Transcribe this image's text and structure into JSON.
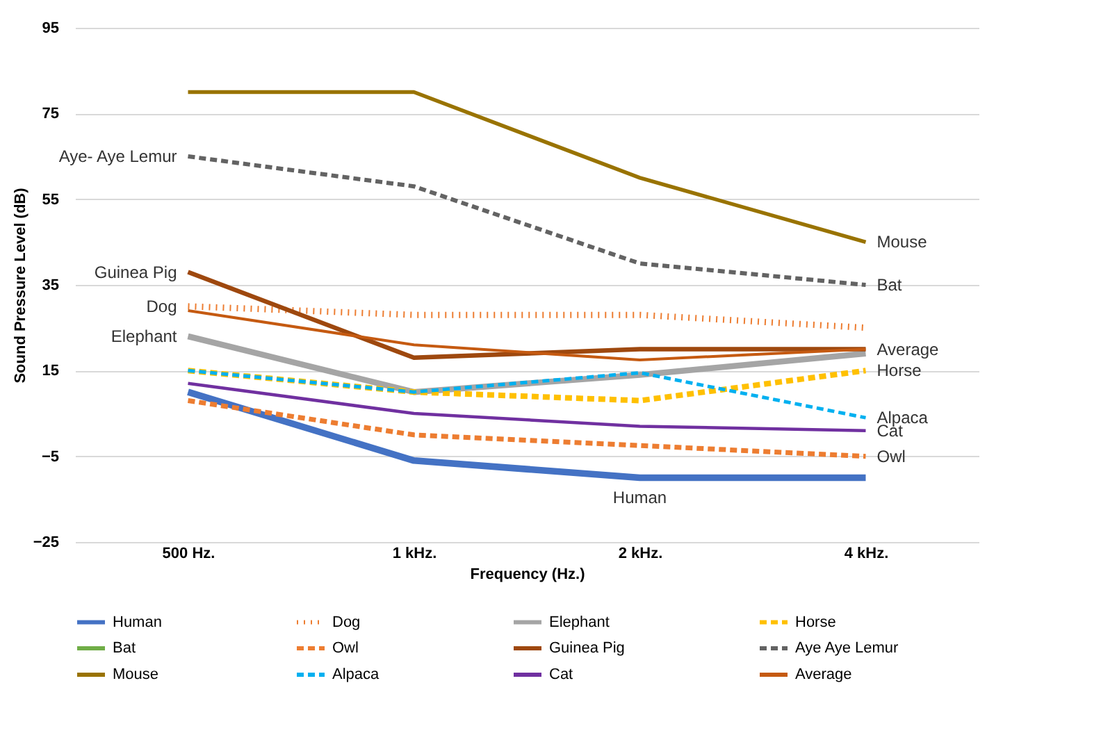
{
  "chart_data": {
    "type": "line",
    "xlabel": "Frequency (Hz.)",
    "ylabel": "Sound Pressure Level (dB)",
    "categories": [
      "500 Hz.",
      "1 kHz.",
      "2 kHz.",
      "4 kHz."
    ],
    "series": [
      {
        "name": "Human",
        "color": "#4472c4",
        "values": [
          10,
          -6,
          -10,
          -10
        ]
      },
      {
        "name": "Dog",
        "color": "#ed7d31",
        "line_style": "dotted",
        "values": [
          30,
          28,
          28,
          25
        ]
      },
      {
        "name": "Elephant",
        "color": "#a5a5a5",
        "values": [
          23,
          10,
          14,
          19
        ]
      },
      {
        "name": "Horse",
        "color": "#ffc000",
        "line_style": "dashed",
        "values": [
          15,
          10,
          8,
          15
        ]
      },
      {
        "name": "Bat",
        "color": "#70ad47",
        "values": [
          null,
          null,
          null,
          null
        ]
      },
      {
        "name": "Owl",
        "color": "#ed7d31",
        "line_style": "dashed",
        "values": [
          8,
          0,
          -2.5,
          -5
        ]
      },
      {
        "name": "Guinea Pig",
        "color": "#9e480e",
        "values": [
          38,
          18,
          20,
          20
        ]
      },
      {
        "name": "Aye Aye Lemur",
        "color": "#636363",
        "line_style": "dashed",
        "values": [
          65,
          58,
          40,
          35
        ]
      },
      {
        "name": "Mouse",
        "color": "#997300",
        "values": [
          80,
          80,
          60,
          45
        ]
      },
      {
        "name": "Alpaca",
        "color": "#00b0f0",
        "line_style": "dashed",
        "values": [
          15,
          10,
          14.5,
          4
        ]
      },
      {
        "name": "Cat",
        "color": "#7030a0",
        "values": [
          12,
          5,
          2,
          1
        ]
      },
      {
        "name": "Average",
        "color": "#c55a11",
        "values": [
          29,
          21,
          17.5,
          20
        ]
      }
    ],
    "ylim": [
      -25,
      95
    ],
    "yticks": [
      -25,
      -5,
      15,
      35,
      55,
      75,
      95
    ],
    "grid": "y",
    "legend": "bottom",
    "annotations": [
      {
        "text": "Aye- Aye Lemur",
        "x": "500 Hz.",
        "y": 65
      },
      {
        "text": "Guinea Pig",
        "x": "500 Hz.",
        "y": 38
      },
      {
        "text": "Dog",
        "x": "500 Hz.",
        "y": 30
      },
      {
        "text": "Elephant",
        "x": "500 Hz.",
        "y": 23
      },
      {
        "text": "Mouse",
        "x": "4 kHz.",
        "y": 45
      },
      {
        "text": "Bat",
        "x": "4 kHz.",
        "y": 35
      },
      {
        "text": "Average",
        "x": "4 kHz.",
        "y": 20
      },
      {
        "text": "Horse",
        "x": "4 kHz.",
        "y": 15
      },
      {
        "text": "Alpaca",
        "x": "4 kHz.",
        "y": 4
      },
      {
        "text": "Cat",
        "x": "4 kHz.",
        "y": 1
      },
      {
        "text": "Owl",
        "x": "4 kHz.",
        "y": -5
      },
      {
        "text": "Human",
        "x": "2 kHz.",
        "y": -10
      }
    ]
  }
}
